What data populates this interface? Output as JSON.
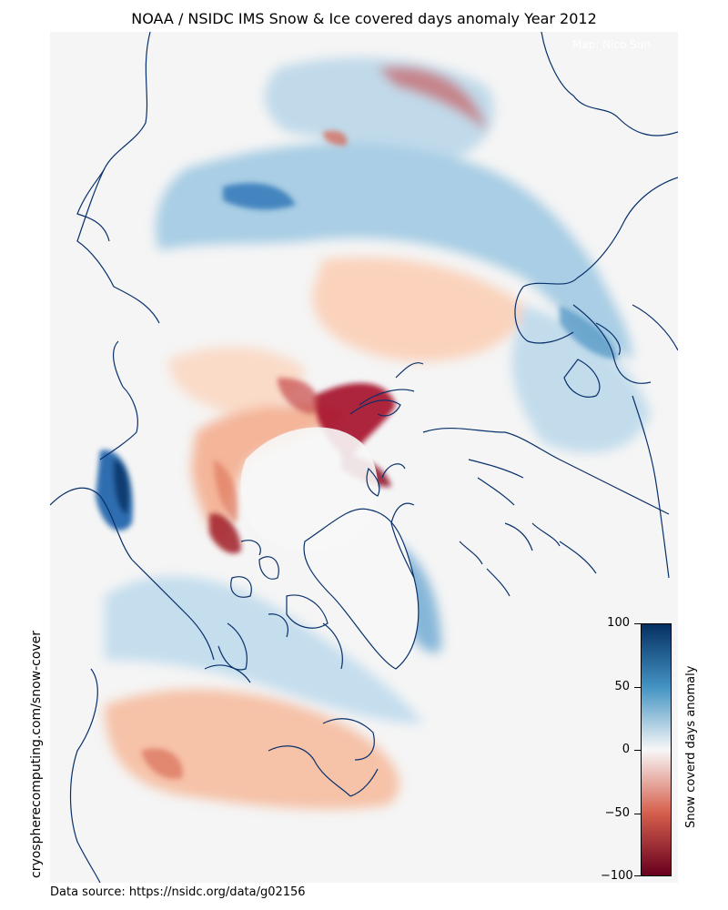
{
  "title": "NOAA / NSIDC IMS Snow & Ice covered days anomaly  Year 2012",
  "map": {
    "credit": "Map: Nico Sun",
    "background_color": "#f5f5f5",
    "coast_color": "#08306b"
  },
  "side_label": "cryospherecomputing.com/snow-cover",
  "source": "Data source: https://nsidc.org/data/g02156",
  "colorbar": {
    "label": "Snow coverd days anomaly",
    "ticks": [
      "100",
      "50",
      "0",
      "−50",
      "−100"
    ],
    "range": [
      -100,
      100
    ],
    "colormap": "RdBu",
    "colors": [
      "#67001f",
      "#d6604d",
      "#f7f7f7",
      "#4393c3",
      "#053061"
    ]
  }
}
